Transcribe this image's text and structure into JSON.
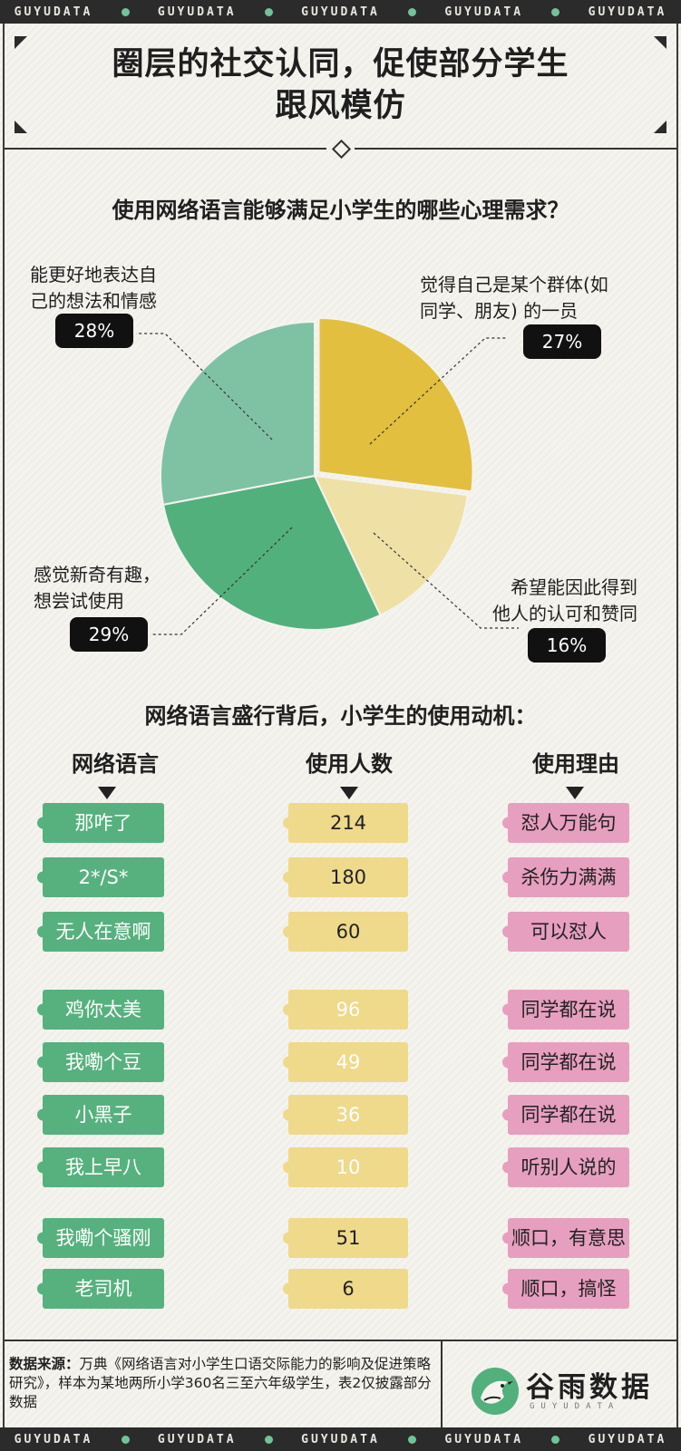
{
  "band_text": "GUYUDATA",
  "hero_title_line1": "圈层的社交认同，促使部分学生",
  "hero_title_line2": "跟风模仿",
  "pie_question": "使用网络语言能够满足小学生的哪些心理需求？",
  "table_question": "网络语言盛行背后，小学生的使用动机：",
  "colors": {
    "pie_gold": "#e2bf3f",
    "pie_cream": "#efe0a6",
    "pie_green": "#52b07d",
    "pie_light_green": "#7fc2a3",
    "tag_green": "#56b17e",
    "tag_yellow": "#efd98b",
    "tag_pink": "#e79fbf"
  },
  "chart_data": [
    {
      "type": "pie",
      "title": "使用网络语言能够满足小学生的哪些心理需求？",
      "slices": [
        {
          "label": "觉得自己是某个群体(如同学、朋友)的一员",
          "value": 27,
          "display": "27%"
        },
        {
          "label": "希望能因此得到他人的认可和赞同",
          "value": 16,
          "display": "16%"
        },
        {
          "label": "感觉新奇有趣，想尝试使用",
          "value": 29,
          "display": "29%"
        },
        {
          "label": "能更好地表达自己的想法和情感",
          "value": 28,
          "display": "28%"
        }
      ]
    },
    {
      "type": "table",
      "title": "网络语言盛行背后，小学生的使用动机：",
      "columns": [
        "网络语言",
        "使用人数",
        "使用理由"
      ],
      "rows": [
        {
          "term": "那咋了",
          "count": 214,
          "reason": "怼人万能句"
        },
        {
          "term": "2*/S*",
          "count": 180,
          "reason": "杀伤力满满"
        },
        {
          "term": "无人在意啊",
          "count": 60,
          "reason": "可以怼人"
        },
        {
          "term": "鸡你太美",
          "count": 96,
          "reason": "同学都在说"
        },
        {
          "term": "我嘞个豆",
          "count": 49,
          "reason": "同学都在说"
        },
        {
          "term": "小黑子",
          "count": 36,
          "reason": "同学都在说"
        },
        {
          "term": "我上早八",
          "count": 10,
          "reason": "听别人说的"
        },
        {
          "term": "我嘞个骚刚",
          "count": 51,
          "reason": "顺口，有意思"
        },
        {
          "term": "老司机",
          "count": 6,
          "reason": "顺口，搞怪"
        }
      ]
    }
  ],
  "pie_labels": {
    "gold_line1": "觉得自己是某个群体(如",
    "gold_line2": "同学、朋友) 的一员",
    "cream_line1": "希望能因此得到",
    "cream_line2": "他人的认可和赞同",
    "green_line1": "感觉新奇有趣，",
    "green_line2": "想尝试使用",
    "light_line1": "能更好地表达自",
    "light_line2": "己的想法和情感"
  },
  "footer": {
    "source_label": "数据来源：",
    "source_text": "万典《网络语言对小学生口语交际能力的影响及促进策略研究》，样本为某地两所小学360名三至六年级学生，表2仅披露部分数据"
  },
  "brand": {
    "name": "谷雨数据",
    "sub": "GUYUDATA"
  }
}
